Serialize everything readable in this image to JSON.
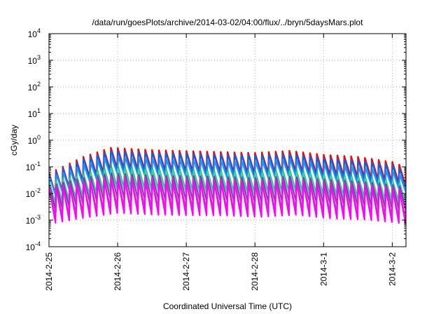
{
  "chart_data": {
    "type": "line",
    "title": "/data/run/goesPlots/archive/2014-03-02/04:00/flux/../bryn/5daysMars.plot",
    "xlabel": "Coordinated Universal Time (UTC)",
    "ylabel": "cGy/day",
    "yscale": "log",
    "ylim": [
      0.0001,
      10000
    ],
    "xlim_days": [
      0,
      5.2
    ],
    "grid": true,
    "legend": "none",
    "x_ticks": [
      {
        "label": "2014-2-25",
        "day": 0
      },
      {
        "label": "2014-2-26",
        "day": 1
      },
      {
        "label": "2014-2-27",
        "day": 2
      },
      {
        "label": "2014-2-28",
        "day": 3
      },
      {
        "label": "2014-3-1",
        "day": 4
      },
      {
        "label": "2014-3-2",
        "day": 5
      }
    ],
    "y_ticks": [
      {
        "base": "10",
        "exp": "-4",
        "value": 0.0001
      },
      {
        "base": "10",
        "exp": "-3",
        "value": 0.001
      },
      {
        "base": "10",
        "exp": "-2",
        "value": 0.01
      },
      {
        "base": "10",
        "exp": "-1",
        "value": 0.1
      },
      {
        "base": "10",
        "exp": "0",
        "value": 1
      },
      {
        "base": "10",
        "exp": "1",
        "value": 10
      },
      {
        "base": "10",
        "exp": "2",
        "value": 100
      },
      {
        "base": "10",
        "exp": "3",
        "value": 1000
      },
      {
        "base": "10",
        "exp": "4",
        "value": 10000
      }
    ],
    "sawtooth_period_days": 0.1,
    "series": [
      {
        "color": "#ff0000",
        "peaks": [
          [
            0.0,
            0.06
          ],
          [
            0.5,
            0.25
          ],
          [
            0.9,
            0.55
          ],
          [
            1.5,
            0.45
          ],
          [
            2.5,
            0.38
          ],
          [
            3.0,
            0.35
          ],
          [
            3.5,
            0.42
          ],
          [
            4.0,
            0.3
          ],
          [
            4.5,
            0.25
          ],
          [
            5.0,
            0.16
          ],
          [
            5.2,
            0.1
          ]
        ],
        "drop": 6
      },
      {
        "color": "#0066ee",
        "peaks": [
          [
            0.0,
            0.05
          ],
          [
            0.5,
            0.2
          ],
          [
            0.9,
            0.42
          ],
          [
            1.5,
            0.35
          ],
          [
            2.5,
            0.3
          ],
          [
            3.0,
            0.28
          ],
          [
            3.5,
            0.32
          ],
          [
            4.0,
            0.22
          ],
          [
            4.5,
            0.18
          ],
          [
            5.0,
            0.12
          ],
          [
            5.2,
            0.07
          ]
        ],
        "drop": 6
      },
      {
        "color": "#1e90ff",
        "peaks": [
          [
            0.0,
            0.04
          ],
          [
            0.5,
            0.12
          ],
          [
            0.9,
            0.25
          ],
          [
            1.5,
            0.2
          ],
          [
            2.5,
            0.17
          ],
          [
            3.0,
            0.16
          ],
          [
            3.5,
            0.2
          ],
          [
            4.0,
            0.13
          ],
          [
            4.5,
            0.1
          ],
          [
            5.0,
            0.07
          ],
          [
            5.2,
            0.04
          ]
        ],
        "drop": 5
      },
      {
        "color": "#00b890",
        "peaks": [
          [
            0.0,
            0.03
          ],
          [
            0.5,
            0.06
          ],
          [
            0.9,
            0.12
          ],
          [
            1.5,
            0.1
          ],
          [
            2.5,
            0.08
          ],
          [
            3.0,
            0.075
          ],
          [
            3.5,
            0.09
          ],
          [
            4.0,
            0.06
          ],
          [
            4.5,
            0.05
          ],
          [
            5.0,
            0.035
          ],
          [
            5.2,
            0.025
          ]
        ],
        "drop": 7
      },
      {
        "color": "#44ccaa",
        "peaks": [
          [
            0.0,
            0.025
          ],
          [
            0.5,
            0.05
          ],
          [
            0.9,
            0.09
          ],
          [
            1.5,
            0.08
          ],
          [
            2.5,
            0.065
          ],
          [
            3.0,
            0.06
          ],
          [
            3.5,
            0.07
          ],
          [
            4.0,
            0.05
          ],
          [
            4.5,
            0.04
          ],
          [
            5.0,
            0.03
          ],
          [
            5.2,
            0.02
          ]
        ],
        "drop": 7
      },
      {
        "color": "#7b3fa0",
        "peaks": [
          [
            0.0,
            0.02
          ],
          [
            0.5,
            0.04
          ],
          [
            0.9,
            0.06
          ],
          [
            1.5,
            0.05
          ],
          [
            2.5,
            0.045
          ],
          [
            3.0,
            0.04
          ],
          [
            3.5,
            0.045
          ],
          [
            4.0,
            0.035
          ],
          [
            4.5,
            0.03
          ],
          [
            5.0,
            0.022
          ],
          [
            5.2,
            0.018
          ]
        ],
        "drop": 10
      },
      {
        "color": "#cc33cc",
        "peaks": [
          [
            0.0,
            0.018
          ],
          [
            0.5,
            0.03
          ],
          [
            0.9,
            0.045
          ],
          [
            1.5,
            0.04
          ],
          [
            2.5,
            0.035
          ],
          [
            3.0,
            0.032
          ],
          [
            3.5,
            0.036
          ],
          [
            4.0,
            0.028
          ],
          [
            4.5,
            0.025
          ],
          [
            5.0,
            0.018
          ],
          [
            5.2,
            0.014
          ]
        ],
        "drop": 14
      },
      {
        "color": "#ff00ff",
        "peaks": [
          [
            0.0,
            0.015
          ],
          [
            0.5,
            0.025
          ],
          [
            0.9,
            0.035
          ],
          [
            1.5,
            0.03
          ],
          [
            2.5,
            0.028
          ],
          [
            3.0,
            0.025
          ],
          [
            3.5,
            0.03
          ],
          [
            4.0,
            0.022
          ],
          [
            4.5,
            0.02
          ],
          [
            5.0,
            0.015
          ],
          [
            5.2,
            0.012
          ]
        ],
        "drop": 20
      }
    ]
  }
}
